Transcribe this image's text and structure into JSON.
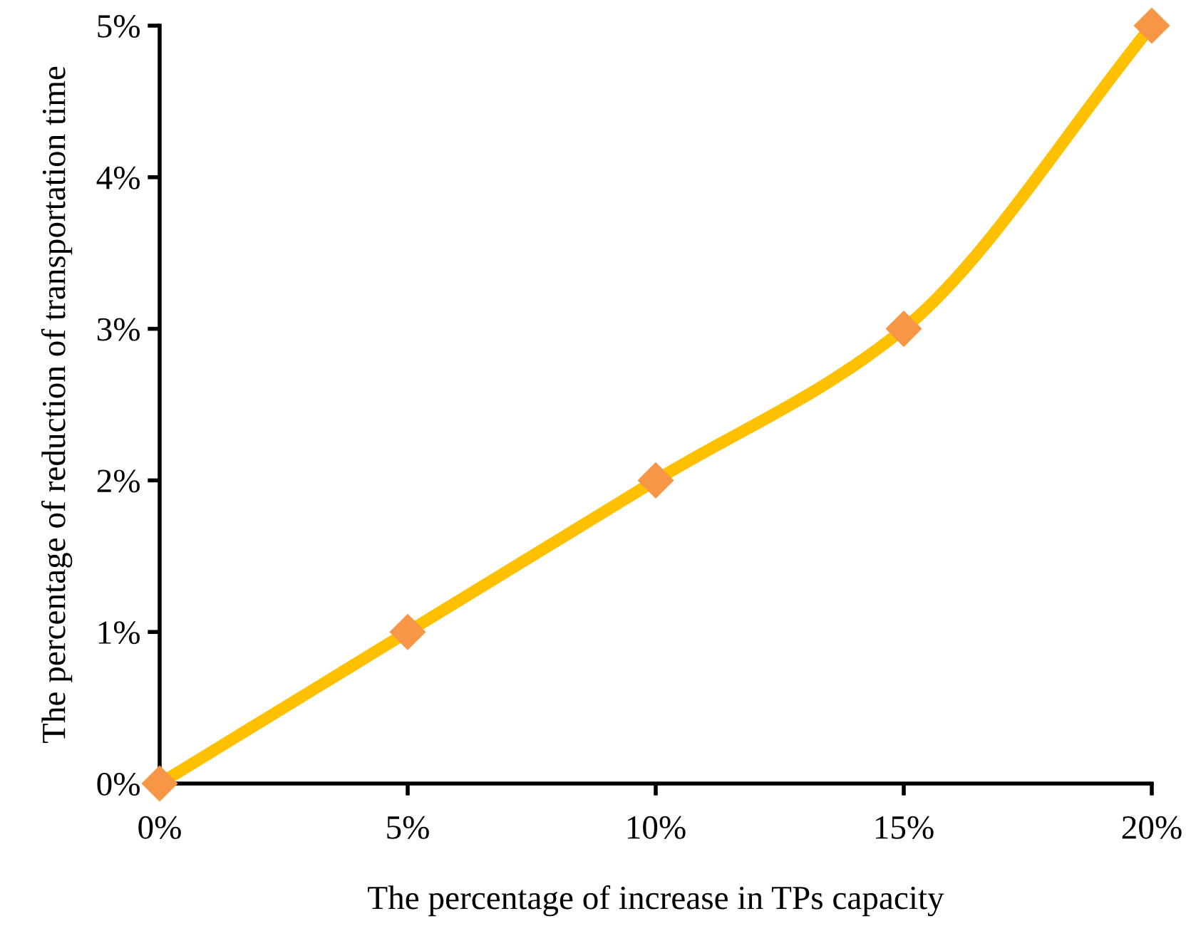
{
  "chart_data": {
    "type": "line",
    "xlabel": "The percentage of increase in TPs capacity",
    "ylabel": "The percentage of reduction of transportation time",
    "x": [
      0,
      5,
      10,
      15,
      20
    ],
    "series": [
      {
        "color": "#ffc000",
        "colors": [
          "#f79646",
          "#f79646",
          "#f79646",
          "#f79646",
          "#f79646"
        ],
        "values": [
          0,
          1,
          2,
          3,
          5
        ]
      }
    ],
    "xlim": [
      0,
      20
    ],
    "xticks": [
      {
        "value": 0,
        "label": "0%"
      },
      {
        "value": 5,
        "label": "5%"
      },
      {
        "value": 10,
        "label": "10%"
      },
      {
        "value": 15,
        "label": "15%"
      },
      {
        "value": 20,
        "label": "20%"
      }
    ],
    "ylim": [
      0,
      5
    ],
    "yticks": [
      {
        "value": 0,
        "label": "0%"
      },
      {
        "value": 1,
        "label": "1%"
      },
      {
        "value": 2,
        "label": "2%"
      },
      {
        "value": 3,
        "label": "3%"
      },
      {
        "value": 4,
        "label": "4%"
      },
      {
        "value": 5,
        "label": "5%"
      }
    ],
    "marker": "diamond",
    "line_style": "solid",
    "grid": false,
    "legend": false
  }
}
